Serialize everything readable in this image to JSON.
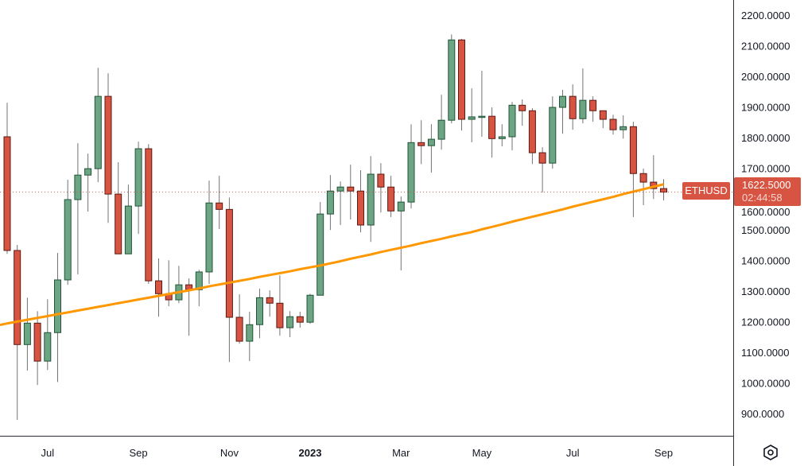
{
  "chart_data": {
    "type": "candlestick",
    "symbol": "ETHUSD",
    "interval": "weekly",
    "last_price": "1622.5000",
    "countdown": "02:44:58",
    "ylim": [
      827,
      2249
    ],
    "y_ticks": [
      "900.0000",
      "1000.0000",
      "1100.0000",
      "1200.0000",
      "1300.0000",
      "1400.0000",
      "1500.0000",
      "1600.0000",
      "1700.0000",
      "1800.0000",
      "1900.0000",
      "2000.0000",
      "2100.0000",
      "2200.0000"
    ],
    "x_ticks": [
      {
        "label": "Jul",
        "date": "2022-07-04",
        "bold": false
      },
      {
        "label": "Sep",
        "date": "2022-09-05",
        "bold": false
      },
      {
        "label": "Nov",
        "date": "2022-11-07",
        "bold": false
      },
      {
        "label": "2023",
        "date": "2023-01-02",
        "bold": true
      },
      {
        "label": "Mar",
        "date": "2023-03-06",
        "bold": false
      },
      {
        "label": "May",
        "date": "2023-05-01",
        "bold": false
      },
      {
        "label": "Jul",
        "date": "2023-07-03",
        "bold": false
      },
      {
        "label": "Sep",
        "date": "2023-09-04",
        "bold": false
      }
    ],
    "first_date": "2022-06-06",
    "colors": {
      "up": "#6ba583",
      "up_border": "#225437",
      "down": "#d75442",
      "down_border": "#5b1a13",
      "wick": "#737375",
      "ma": "#ff9800",
      "last_line": "#d75442"
    },
    "ohlc": [
      [
        1803,
        1914,
        1421,
        1432
      ],
      [
        1432,
        1450,
        879,
        1125
      ],
      [
        1125,
        1278,
        1040,
        1195
      ],
      [
        1195,
        1234,
        993,
        1071
      ],
      [
        1071,
        1273,
        1042,
        1164
      ],
      [
        1164,
        1424,
        1003,
        1336
      ],
      [
        1336,
        1663,
        1320,
        1598
      ],
      [
        1598,
        1782,
        1354,
        1678
      ],
      [
        1678,
        1748,
        1559,
        1699
      ],
      [
        1699,
        2028,
        1655,
        1935
      ],
      [
        1935,
        2010,
        1522,
        1616
      ],
      [
        1616,
        1720,
        1421,
        1421
      ],
      [
        1421,
        1647,
        1421,
        1577
      ],
      [
        1577,
        1787,
        1486,
        1764
      ],
      [
        1764,
        1779,
        1323,
        1333
      ],
      [
        1333,
        1406,
        1216,
        1291
      ],
      [
        1291,
        1400,
        1250,
        1271
      ],
      [
        1271,
        1382,
        1260,
        1320
      ],
      [
        1320,
        1341,
        1154,
        1304
      ],
      [
        1304,
        1369,
        1250,
        1362
      ],
      [
        1362,
        1660,
        1323,
        1587
      ],
      [
        1587,
        1676,
        1502,
        1566
      ],
      [
        1566,
        1605,
        1068,
        1214
      ],
      [
        1214,
        1289,
        1128,
        1136
      ],
      [
        1136,
        1232,
        1071,
        1190
      ],
      [
        1190,
        1307,
        1146,
        1278
      ],
      [
        1278,
        1302,
        1216,
        1260
      ],
      [
        1260,
        1351,
        1154,
        1180
      ],
      [
        1180,
        1234,
        1149,
        1216
      ],
      [
        1216,
        1232,
        1180,
        1198
      ],
      [
        1198,
        1291,
        1193,
        1286
      ],
      [
        1286,
        1590,
        1286,
        1551
      ],
      [
        1551,
        1678,
        1499,
        1626
      ],
      [
        1626,
        1657,
        1515,
        1639
      ],
      [
        1639,
        1712,
        1533,
        1626
      ],
      [
        1626,
        1694,
        1491,
        1515
      ],
      [
        1515,
        1740,
        1460,
        1681
      ],
      [
        1681,
        1717,
        1556,
        1639
      ],
      [
        1639,
        1676,
        1541,
        1561
      ],
      [
        1561,
        1608,
        1367,
        1590
      ],
      [
        1590,
        1844,
        1569,
        1784
      ],
      [
        1784,
        1857,
        1714,
        1774
      ],
      [
        1774,
        1844,
        1686,
        1795
      ],
      [
        1795,
        1940,
        1761,
        1857
      ],
      [
        1857,
        2137,
        1847,
        2119
      ],
      [
        2119,
        2122,
        1823,
        1860
      ],
      [
        1860,
        1961,
        1785,
        1868
      ],
      [
        1868,
        2018,
        1803,
        1870
      ],
      [
        1870,
        1899,
        1735,
        1797
      ],
      [
        1797,
        1844,
        1772,
        1803
      ],
      [
        1803,
        1917,
        1759,
        1906
      ],
      [
        1906,
        1925,
        1839,
        1888
      ],
      [
        1888,
        1896,
        1714,
        1751
      ],
      [
        1751,
        1769,
        1621,
        1717
      ],
      [
        1717,
        1935,
        1699,
        1899
      ],
      [
        1899,
        1956,
        1813,
        1935
      ],
      [
        1935,
        1974,
        1826,
        1862
      ],
      [
        1862,
        2026,
        1847,
        1922
      ],
      [
        1922,
        1935,
        1852,
        1888
      ],
      [
        1888,
        1888,
        1831,
        1860
      ],
      [
        1860,
        1875,
        1810,
        1826
      ],
      [
        1826,
        1873,
        1797,
        1836
      ],
      [
        1836,
        1852,
        1541,
        1683
      ],
      [
        1683,
        1699,
        1580,
        1655
      ],
      [
        1655,
        1743,
        1600,
        1634
      ],
      [
        1634,
        1665,
        1595,
        1622.5
      ]
    ],
    "moving_average": [
      1194,
      1200,
      1206,
      1212,
      1218,
      1224,
      1230,
      1236,
      1242,
      1248,
      1254,
      1260,
      1266,
      1272,
      1278,
      1284,
      1290,
      1296,
      1302,
      1308,
      1315,
      1321,
      1327,
      1333,
      1339,
      1346,
      1352,
      1358,
      1364,
      1371,
      1377,
      1383,
      1390,
      1397,
      1405,
      1412,
      1419,
      1427,
      1434,
      1441,
      1448,
      1456,
      1463,
      1470,
      1478,
      1485,
      1492,
      1501,
      1509,
      1517,
      1526,
      1534,
      1542,
      1550,
      1558,
      1566,
      1575,
      1583,
      1591,
      1599,
      1607,
      1616,
      1624,
      1632,
      1640,
      1648
    ]
  },
  "settings_icon": "hexagon-settings-icon"
}
